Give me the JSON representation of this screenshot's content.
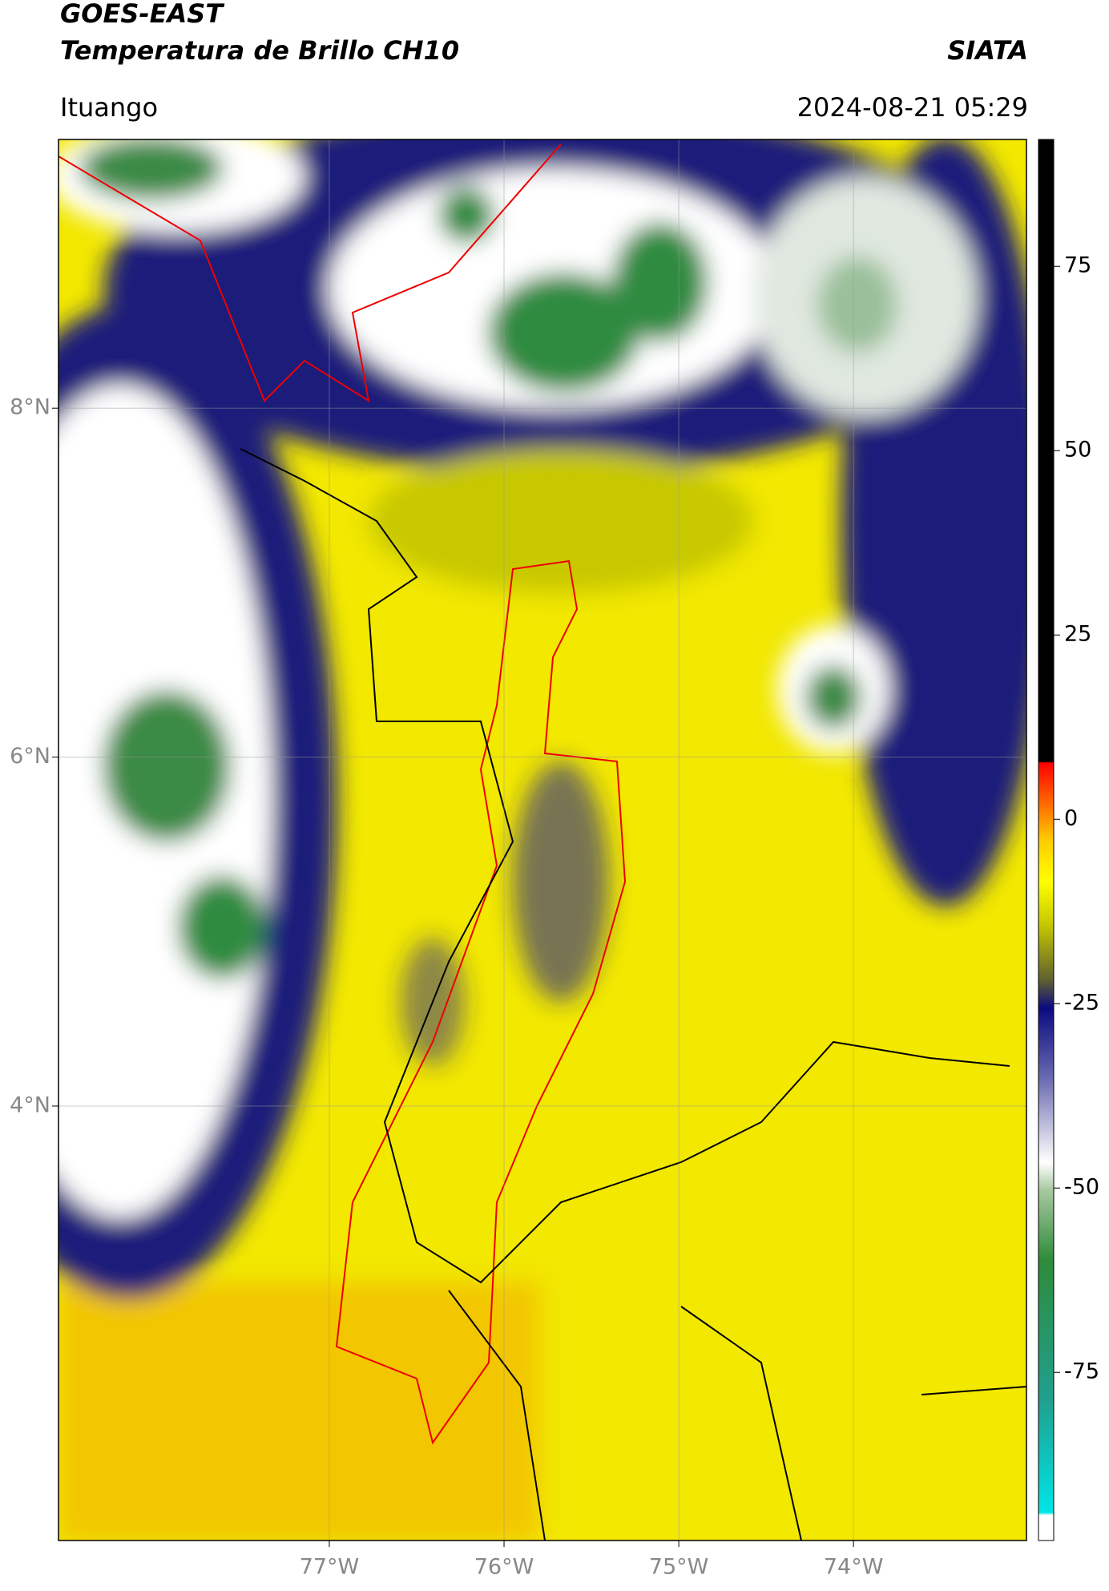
{
  "header": {
    "title": "GOES-EAST",
    "subtitle": "Temperatura de Brillo CH10",
    "source": "SIATA",
    "region": "Ituango",
    "timestamp": "2024-08-21 05:29"
  },
  "map": {
    "lonlim": [
      -78.55,
      -73.01
    ],
    "latlim": [
      1.51,
      9.54
    ],
    "lat_ticks": [
      {
        "value": 8,
        "label": "8°N"
      },
      {
        "value": 6,
        "label": "6°N"
      },
      {
        "value": 4,
        "label": "4°N"
      }
    ],
    "lon_ticks": [
      {
        "value": -77,
        "label": "77°W"
      },
      {
        "value": -76,
        "label": "76°W"
      },
      {
        "value": -75,
        "label": "75°W"
      },
      {
        "value": -74,
        "label": "74°W"
      }
    ]
  },
  "colorbar": {
    "lim": [
      -97.8,
      92.2
    ],
    "ticks": [
      75,
      50,
      25,
      0,
      -25,
      -50,
      -75
    ]
  }
}
